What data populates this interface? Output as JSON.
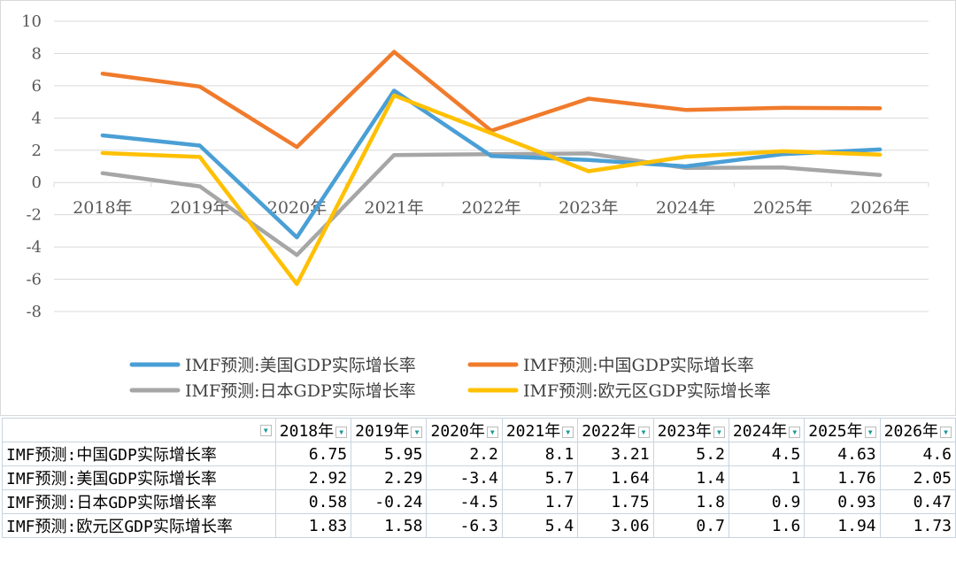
{
  "chart_data": {
    "type": "line",
    "categories": [
      "2018年",
      "2019年",
      "2020年",
      "2021年",
      "2022年",
      "2023年",
      "2024年",
      "2025年",
      "2026年"
    ],
    "ylim": [
      -8,
      10
    ],
    "yticks": [
      10,
      8,
      6,
      4,
      2,
      0,
      -2,
      -4,
      -6,
      -8
    ],
    "grid": true,
    "legend_position": "bottom",
    "series": [
      {
        "name": "IMF预测:美国GDP实际增长率",
        "color": "#4a9fd5",
        "values": [
          2.92,
          2.29,
          -3.4,
          5.7,
          1.64,
          1.4,
          1,
          1.76,
          2.05
        ]
      },
      {
        "name": "IMF预测:中国GDP实际增长率",
        "color": "#f07b2c",
        "values": [
          6.75,
          5.95,
          2.2,
          8.1,
          3.21,
          5.2,
          4.5,
          4.63,
          4.6
        ]
      },
      {
        "name": "IMF预测:日本GDP实际增长率",
        "color": "#a6a6a6",
        "values": [
          0.58,
          -0.24,
          -4.5,
          1.7,
          1.75,
          1.8,
          0.9,
          0.93,
          0.47
        ]
      },
      {
        "name": "IMF预测:欧元区GDP实际增长率",
        "color": "#ffc000",
        "values": [
          1.83,
          1.58,
          -6.3,
          5.4,
          3.06,
          0.7,
          1.6,
          1.94,
          1.73
        ]
      }
    ]
  },
  "table": {
    "headers": [
      "2018年",
      "2019年",
      "2020年",
      "2021年",
      "2022年",
      "2023年",
      "2024年",
      "2025年",
      "2026年"
    ],
    "rows": [
      {
        "label": "IMF预测:中国GDP实际增长率",
        "values": [
          "6.75",
          "5.95",
          "2.2",
          "8.1",
          "3.21",
          "5.2",
          "4.5",
          "4.63",
          "4.6"
        ]
      },
      {
        "label": "IMF预测:美国GDP实际增长率",
        "values": [
          "2.92",
          "2.29",
          "-3.4",
          "5.7",
          "1.64",
          "1.4",
          "1",
          "1.76",
          "2.05"
        ]
      },
      {
        "label": "IMF预测:日本GDP实际增长率",
        "values": [
          "0.58",
          "-0.24",
          "-4.5",
          "1.7",
          "1.75",
          "1.8",
          "0.9",
          "0.93",
          "0.47"
        ]
      },
      {
        "label": "IMF预测:欧元区GDP实际增长率",
        "values": [
          "1.83",
          "1.58",
          "-6.3",
          "5.4",
          "3.06",
          "0.7",
          "1.6",
          "1.94",
          "1.73"
        ]
      }
    ],
    "filter_icon": "dropdown-arrow-icon"
  }
}
